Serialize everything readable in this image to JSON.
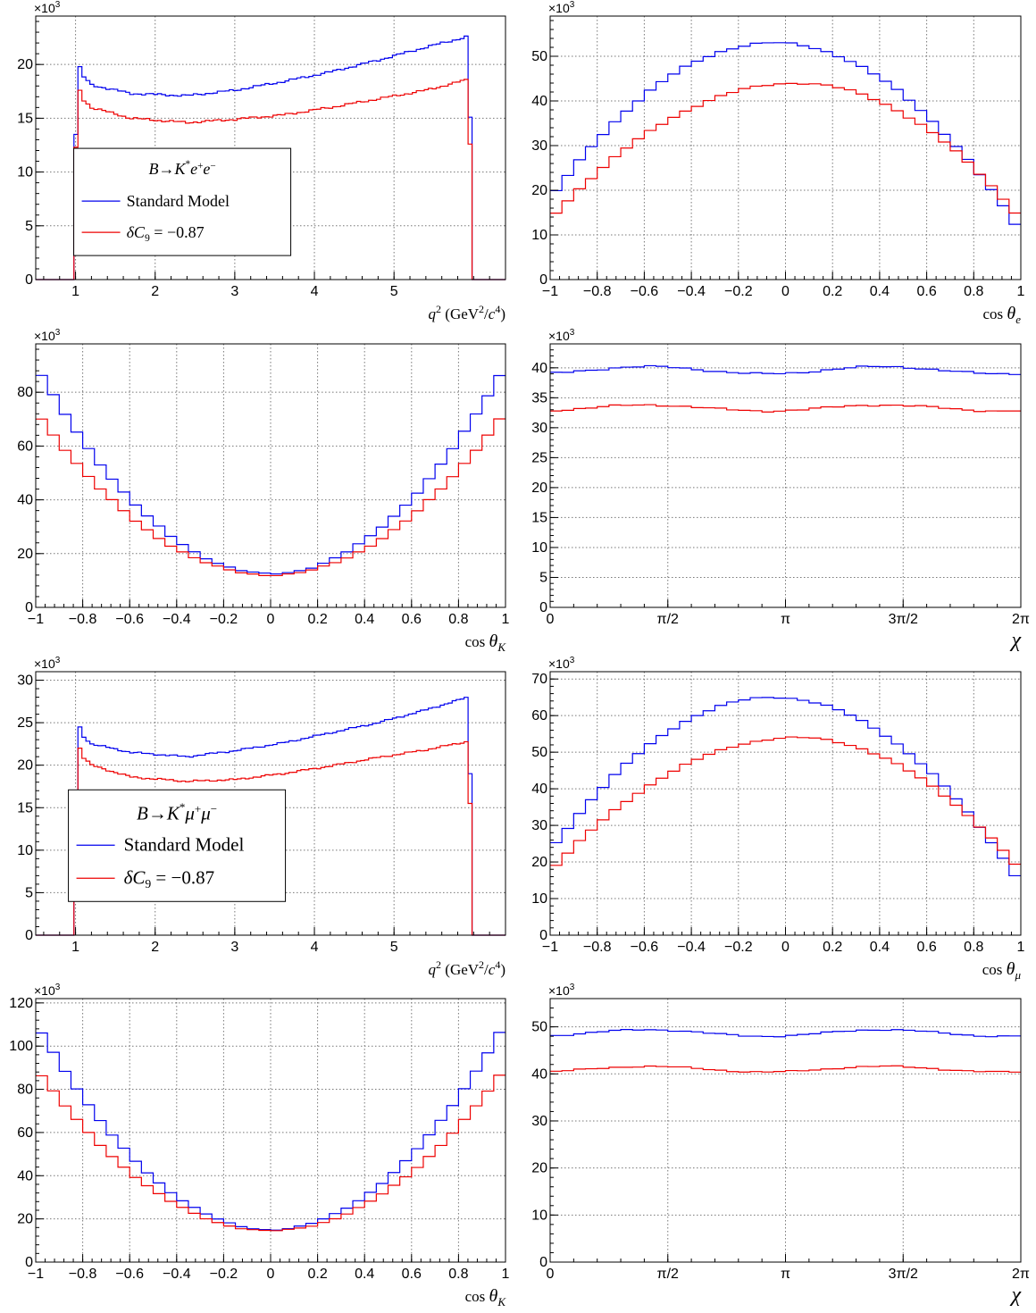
{
  "colors": {
    "sm": "#0000ee",
    "np": "#ee0000",
    "grid": "#777777"
  },
  "chart_data": [
    {
      "id": "ee_q2",
      "type": "line",
      "step": true,
      "xlabel": "q² (GeV²/c⁴)",
      "xlim": [
        0.5,
        6.4
      ],
      "ylim": [
        0,
        24.5
      ],
      "y_exponent": "×10³",
      "xticks": [
        1,
        2,
        3,
        4,
        5
      ],
      "xtick_labels": [
        "1",
        "2",
        "3",
        "4",
        "5"
      ],
      "yticks": [
        0,
        5,
        10,
        15,
        20
      ],
      "ytick_labels": [
        "0",
        "5",
        "10",
        "15",
        "20"
      ],
      "grid": true,
      "legend": {
        "placement": "left-lower-middle",
        "entries": [
          "B→K*e⁺e⁻",
          "Standard Model",
          "δC₉ = −0.87"
        ]
      },
      "series": [
        {
          "name": "Standard Model",
          "color": "sm",
          "kind": "q2",
          "bin0": 0.98,
          "binw": 0.05,
          "nbins": 100,
          "edges": [
            13.5,
            15.1
          ],
          "nodes": [
            [
              0.98,
              19.8
            ],
            [
              1.2,
              18.1
            ],
            [
              1.7,
              17.3
            ],
            [
              2.4,
              17.1
            ],
            [
              3.0,
              17.6
            ],
            [
              3.6,
              18.4
            ],
            [
              4.2,
              19.3
            ],
            [
              4.8,
              20.4
            ],
            [
              5.4,
              21.6
            ],
            [
              5.93,
              22.6
            ]
          ]
        },
        {
          "name": "δC₉ = −0.87",
          "color": "np",
          "kind": "q2",
          "bin0": 0.98,
          "binw": 0.05,
          "nbins": 100,
          "edges": [
            12.3,
            12.6
          ],
          "nodes": [
            [
              0.98,
              17.6
            ],
            [
              1.2,
              16.0
            ],
            [
              1.7,
              15.0
            ],
            [
              2.4,
              14.6
            ],
            [
              3.0,
              14.9
            ],
            [
              3.6,
              15.3
            ],
            [
              4.2,
              16.0
            ],
            [
              4.8,
              16.8
            ],
            [
              5.4,
              17.6
            ],
            [
              5.93,
              18.6
            ]
          ]
        }
      ]
    },
    {
      "id": "ee_cose",
      "type": "line",
      "step": true,
      "xlabel": "cos θe",
      "xlim": [
        -1,
        1
      ],
      "ylim": [
        0,
        59
      ],
      "y_exponent": "×10³",
      "xticks": [
        -1,
        -0.8,
        -0.6,
        -0.4,
        -0.2,
        0,
        0.2,
        0.4,
        0.6,
        0.8,
        1
      ],
      "xtick_labels": [
        "−1",
        "−0.8",
        "−0.6",
        "−0.4",
        "−0.2",
        "0",
        "0.2",
        "0.4",
        "0.6",
        "0.8",
        "1"
      ],
      "yticks": [
        0,
        10,
        20,
        30,
        40,
        50
      ],
      "ytick_labels": [
        "0",
        "10",
        "20",
        "30",
        "40",
        "50"
      ],
      "grid": true,
      "series": [
        {
          "name": "Standard Model",
          "color": "sm",
          "kind": "cosl",
          "nbins": 40,
          "peak": 53.0,
          "center": -0.05,
          "low_left": 18,
          "low_right": 10.5
        },
        {
          "name": "δC₉ = −0.87",
          "color": "np",
          "kind": "cosl",
          "nbins": 40,
          "peak": 44.0,
          "center": 0.05,
          "low_left": 13.5,
          "low_right": 13.5
        }
      ]
    },
    {
      "id": "ee_cosk",
      "type": "line",
      "step": true,
      "xlabel": "cos θK",
      "xlim": [
        -1,
        1
      ],
      "ylim": [
        0,
        98
      ],
      "y_exponent": "×10³",
      "xticks": [
        -1,
        -0.8,
        -0.6,
        -0.4,
        -0.2,
        0,
        0.2,
        0.4,
        0.6,
        0.8,
        1
      ],
      "xtick_labels": [
        "−1",
        "−0.8",
        "−0.6",
        "−0.4",
        "−0.2",
        "0",
        "0.2",
        "0.4",
        "0.6",
        "0.8",
        "1"
      ],
      "yticks": [
        0,
        20,
        40,
        60,
        80
      ],
      "ytick_labels": [
        "0",
        "20",
        "40",
        "60",
        "80"
      ],
      "grid": true,
      "series": [
        {
          "name": "Standard Model",
          "color": "sm",
          "kind": "cosk",
          "nbins": 40,
          "min": 12.5,
          "max": 90
        },
        {
          "name": "δC₉ = −0.87",
          "color": "np",
          "kind": "cosk",
          "nbins": 40,
          "min": 12.0,
          "max": 73
        }
      ]
    },
    {
      "id": "ee_chi",
      "type": "line",
      "step": true,
      "xlabel": "χ",
      "xlim": [
        0,
        6.2832
      ],
      "ylim": [
        0,
        44
      ],
      "y_exponent": "×10³",
      "xticks": [
        0,
        1.5708,
        3.1416,
        4.7124,
        6.2832
      ],
      "xtick_labels": [
        "0",
        "π/2",
        "π",
        "3π/2",
        "2π"
      ],
      "yticks": [
        0,
        5,
        10,
        15,
        20,
        25,
        30,
        35,
        40
      ],
      "ytick_labels": [
        "0",
        "5",
        "10",
        "15",
        "20",
        "25",
        "30",
        "35",
        "40"
      ],
      "grid": true,
      "series": [
        {
          "name": "Standard Model",
          "color": "sm",
          "kind": "chi",
          "nbins": 40,
          "mean": 39.6,
          "amp": 0.6
        },
        {
          "name": "δC₉ = −0.87",
          "color": "np",
          "kind": "chi",
          "nbins": 40,
          "mean": 33.3,
          "amp": 0.5
        }
      ]
    },
    {
      "id": "mm_q2",
      "type": "line",
      "step": true,
      "xlabel": "q² (GeV²/c⁴)",
      "xlim": [
        0.5,
        6.4
      ],
      "ylim": [
        0,
        31
      ],
      "y_exponent": "×10³",
      "xticks": [
        1,
        2,
        3,
        4,
        5
      ],
      "xtick_labels": [
        "1",
        "2",
        "3",
        "4",
        "5"
      ],
      "yticks": [
        0,
        5,
        10,
        15,
        20,
        25,
        30
      ],
      "ytick_labels": [
        "0",
        "5",
        "10",
        "15",
        "20",
        "25",
        "30"
      ],
      "grid": true,
      "legend": {
        "placement": "left-lower-middle",
        "entries": [
          "B→K*μ⁺μ⁻",
          "Standard Model",
          "δC₉ = −0.87"
        ]
      },
      "series": [
        {
          "name": "Standard Model",
          "color": "sm",
          "kind": "q2",
          "bin0": 0.98,
          "binw": 0.05,
          "nbins": 100,
          "edges": [
            16.5,
            19.0
          ],
          "nodes": [
            [
              0.98,
              24.5
            ],
            [
              1.2,
              22.5
            ],
            [
              1.7,
              21.5
            ],
            [
              2.4,
              21.0
            ],
            [
              3.0,
              21.7
            ],
            [
              3.6,
              22.6
            ],
            [
              4.2,
              23.8
            ],
            [
              4.8,
              25.0
            ],
            [
              5.4,
              26.5
            ],
            [
              5.93,
              28.0
            ]
          ]
        },
        {
          "name": "δC₉ = −0.87",
          "color": "np",
          "kind": "q2",
          "bin0": 0.98,
          "binw": 0.05,
          "nbins": 100,
          "edges": [
            15.0,
            15.5
          ],
          "nodes": [
            [
              0.98,
              22.0
            ],
            [
              1.2,
              20.0
            ],
            [
              1.7,
              18.6
            ],
            [
              2.4,
              18.1
            ],
            [
              3.0,
              18.3
            ],
            [
              3.6,
              19.0
            ],
            [
              4.2,
              19.9
            ],
            [
              4.8,
              20.9
            ],
            [
              5.4,
              21.8
            ],
            [
              5.93,
              22.8
            ]
          ]
        }
      ]
    },
    {
      "id": "mm_cosl",
      "type": "line",
      "step": true,
      "xlabel": "cos θμ",
      "xlim": [
        -1,
        1
      ],
      "ylim": [
        0,
        72
      ],
      "y_exponent": "×10³",
      "xticks": [
        -1,
        -0.8,
        -0.6,
        -0.4,
        -0.2,
        0,
        0.2,
        0.4,
        0.6,
        0.8,
        1
      ],
      "xtick_labels": [
        "−1",
        "−0.8",
        "−0.6",
        "−0.4",
        "−0.2",
        "0",
        "0.2",
        "0.4",
        "0.6",
        "0.8",
        "1"
      ],
      "yticks": [
        0,
        10,
        20,
        30,
        40,
        50,
        60,
        70
      ],
      "ytick_labels": [
        "0",
        "10",
        "20",
        "30",
        "40",
        "50",
        "60",
        "70"
      ],
      "grid": true,
      "series": [
        {
          "name": "Standard Model",
          "color": "sm",
          "kind": "cosl",
          "nbins": 40,
          "peak": 65.0,
          "center": -0.05,
          "low_left": 23,
          "low_right": 14
        },
        {
          "name": "δC₉ = −0.87",
          "color": "np",
          "kind": "cosl",
          "nbins": 40,
          "peak": 54.0,
          "center": 0.05,
          "low_left": 17.5,
          "low_right": 17.5
        }
      ]
    },
    {
      "id": "mm_cosk",
      "type": "line",
      "step": true,
      "xlabel": "cos θK",
      "xlim": [
        -1,
        1
      ],
      "ylim": [
        0,
        122
      ],
      "y_exponent": "×10³",
      "xticks": [
        -1,
        -0.8,
        -0.6,
        -0.4,
        -0.2,
        0,
        0.2,
        0.4,
        0.6,
        0.8,
        1
      ],
      "xtick_labels": [
        "−1",
        "−0.8",
        "−0.6",
        "−0.4",
        "−0.2",
        "0",
        "0.2",
        "0.4",
        "0.6",
        "0.8",
        "1"
      ],
      "yticks": [
        0,
        20,
        40,
        60,
        80,
        100,
        120
      ],
      "ytick_labels": [
        "0",
        "20",
        "40",
        "60",
        "80",
        "100",
        "120"
      ],
      "grid": true,
      "series": [
        {
          "name": "Standard Model",
          "color": "sm",
          "kind": "cosk",
          "nbins": 40,
          "min": 15.0,
          "max": 111
        },
        {
          "name": "δC₉ = −0.87",
          "color": "np",
          "kind": "cosk",
          "nbins": 40,
          "min": 14.5,
          "max": 90
        }
      ]
    },
    {
      "id": "mm_chi",
      "type": "line",
      "step": true,
      "xlabel": "χ",
      "xlim": [
        0,
        6.2832
      ],
      "ylim": [
        0,
        56
      ],
      "y_exponent": "×10³",
      "xticks": [
        0,
        1.5708,
        3.1416,
        4.7124,
        6.2832
      ],
      "xtick_labels": [
        "0",
        "π/2",
        "π",
        "3π/2",
        "2π"
      ],
      "yticks": [
        0,
        10,
        20,
        30,
        40,
        50
      ],
      "ytick_labels": [
        "0",
        "10",
        "20",
        "30",
        "40",
        "50"
      ],
      "grid": true,
      "series": [
        {
          "name": "Standard Model",
          "color": "sm",
          "kind": "chi",
          "nbins": 40,
          "mean": 48.7,
          "amp": 0.7
        },
        {
          "name": "δC₉ = −0.87",
          "color": "np",
          "kind": "chi",
          "nbins": 40,
          "mean": 41.0,
          "amp": 0.6
        }
      ]
    }
  ]
}
